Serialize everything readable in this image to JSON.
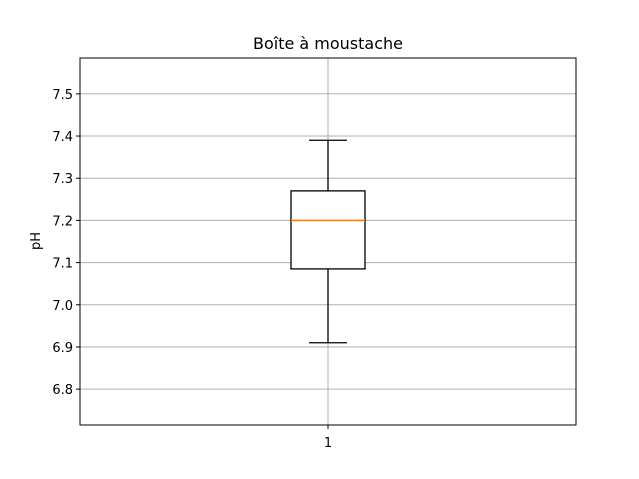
{
  "chart_data": {
    "type": "boxplot",
    "title": "Boîte à moustache",
    "xlabel": "",
    "ylabel": "pH",
    "categories": [
      "1"
    ],
    "ylim": [
      6.715,
      7.585
    ],
    "yticks": [
      6.8,
      6.9,
      7.0,
      7.1,
      7.2,
      7.3,
      7.4,
      7.5
    ],
    "ytick_labels": [
      "6.8",
      "6.9",
      "7.0",
      "7.1",
      "7.2",
      "7.3",
      "7.4",
      "7.5"
    ],
    "grid": true,
    "boxes": [
      {
        "category": "1",
        "whisker_low": 6.91,
        "q1": 7.085,
        "median": 7.2,
        "q3": 7.27,
        "whisker_high": 7.39
      }
    ],
    "colors": {
      "box": "#000000",
      "median": "#ff7f0e",
      "grid": "#b0b0b0"
    }
  }
}
